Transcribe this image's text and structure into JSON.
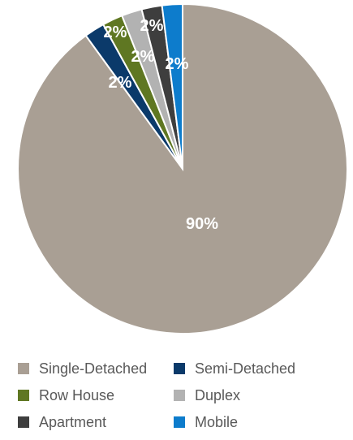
{
  "chart_data": {
    "type": "pie",
    "title": "",
    "slices": [
      {
        "label": "Single-Detached",
        "value": 90,
        "display": "90%",
        "color": "#a99f94"
      },
      {
        "label": "Semi-Detached",
        "value": 2,
        "display": "2%",
        "color": "#0b3a6a"
      },
      {
        "label": "Row House",
        "value": 2,
        "display": "2%",
        "color": "#5f7722"
      },
      {
        "label": "Duplex",
        "value": 2,
        "display": "2%",
        "color": "#b2b2b2"
      },
      {
        "label": "Apartment",
        "value": 2,
        "display": "2%",
        "color": "#3e3e3e"
      },
      {
        "label": "Mobile",
        "value": 2,
        "display": "2%",
        "color": "#0d7ccc"
      }
    ],
    "legend_position": "bottom"
  }
}
